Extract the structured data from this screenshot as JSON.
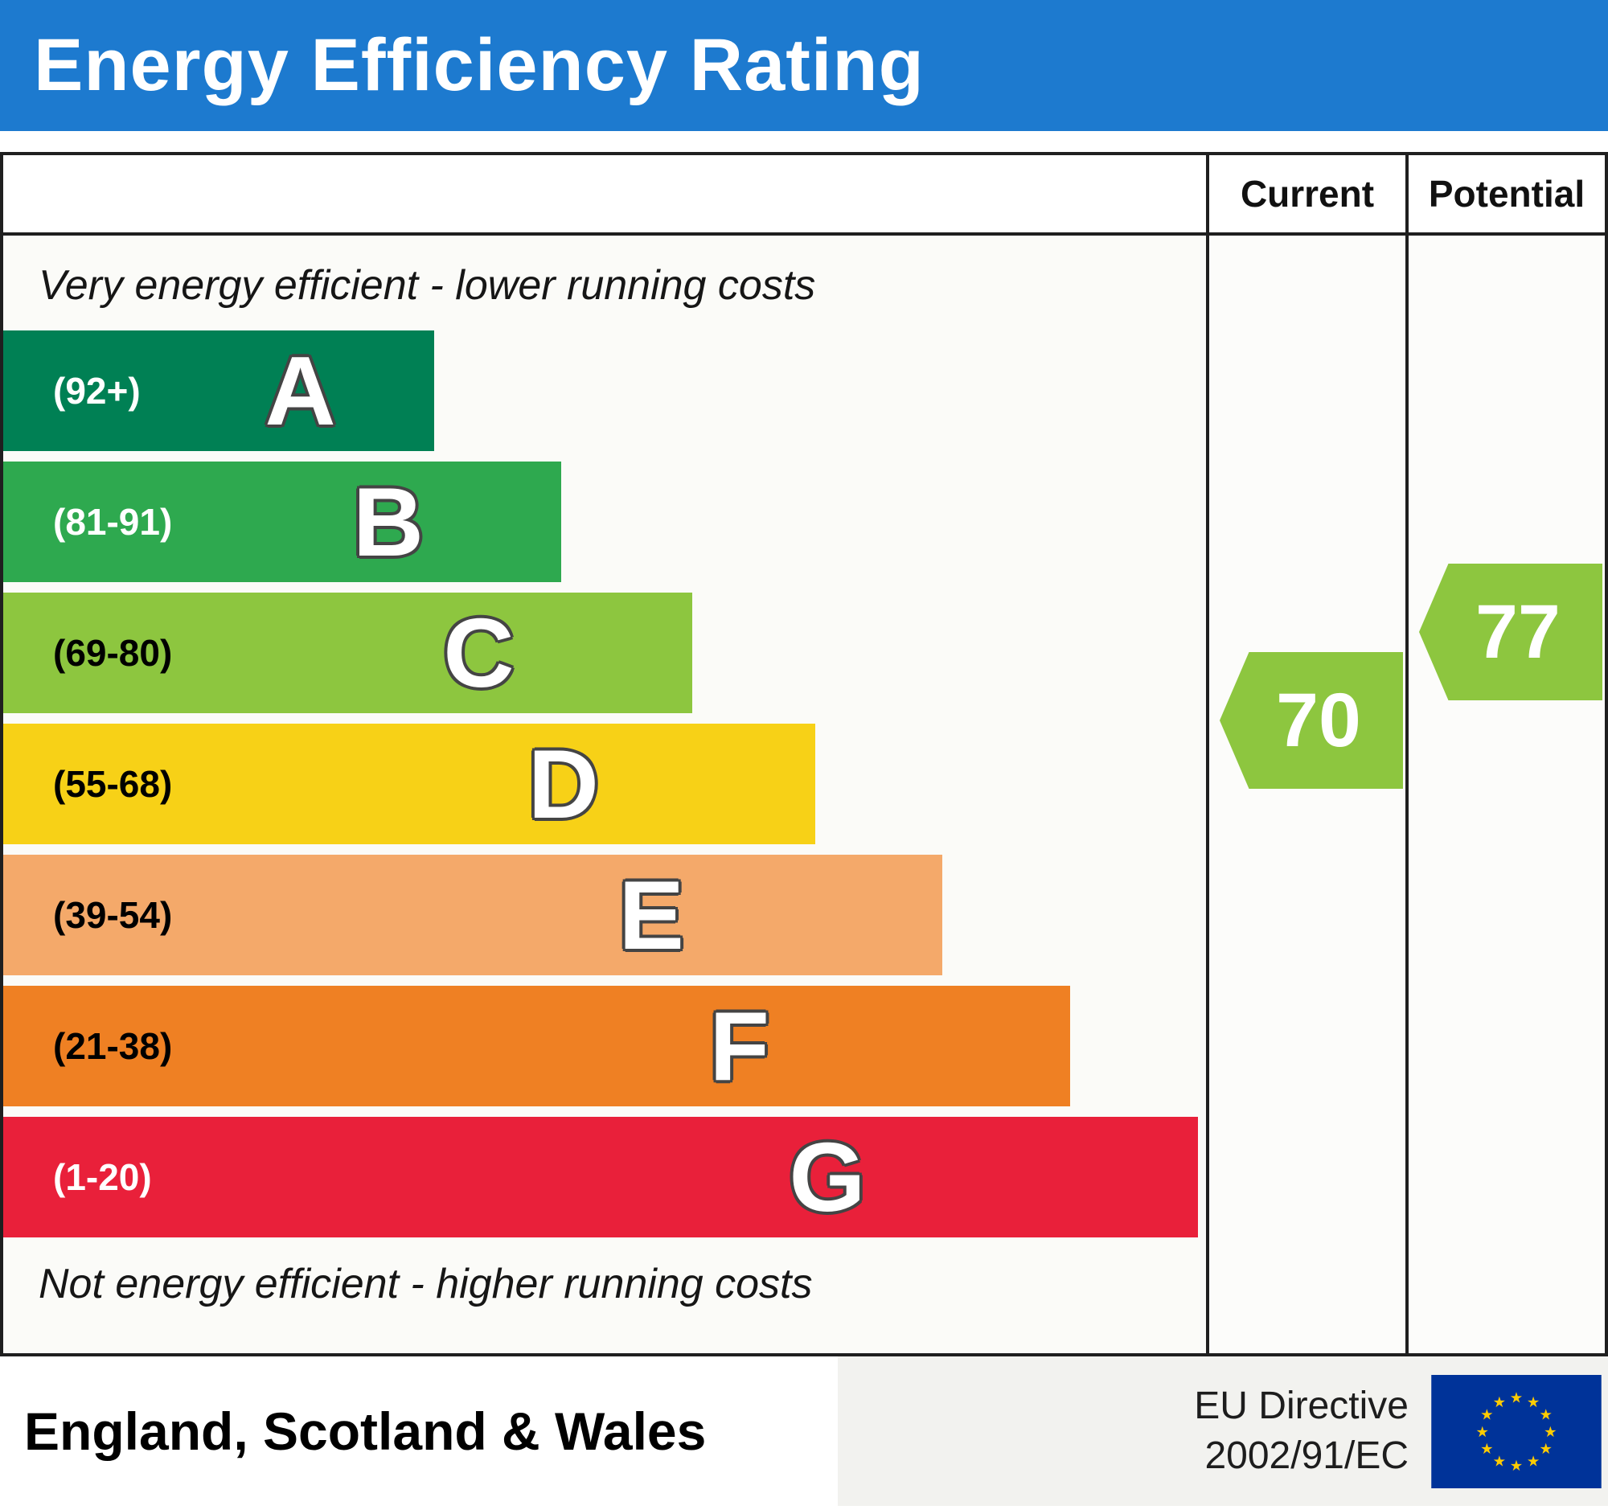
{
  "title": "Energy Efficiency Rating",
  "header": {
    "current": "Current",
    "potential": "Potential"
  },
  "notes": {
    "top": "Very energy efficient - lower running costs",
    "bottom": "Not energy efficient - higher running costs"
  },
  "bands": [
    {
      "letter": "A",
      "range": "(92+)",
      "color": "#008054",
      "text_color": "#ffffff",
      "width_pct": 35.8
    },
    {
      "letter": "B",
      "range": "(81-91)",
      "color": "#2ea94f",
      "text_color": "#ffffff",
      "width_pct": 46.4
    },
    {
      "letter": "C",
      "range": "(69-80)",
      "color": "#8dc63f",
      "text_color": "#000000",
      "width_pct": 57.3
    },
    {
      "letter": "D",
      "range": "(55-68)",
      "color": "#f7d117",
      "text_color": "#000000",
      "width_pct": 67.5
    },
    {
      "letter": "E",
      "range": "(39-54)",
      "color": "#f4a96a",
      "text_color": "#000000",
      "width_pct": 78.1
    },
    {
      "letter": "F",
      "range": "(21-38)",
      "color": "#ef8023",
      "text_color": "#000000",
      "width_pct": 88.7
    },
    {
      "letter": "G",
      "range": "(1-20)",
      "color": "#e9203a",
      "text_color": "#ffffff",
      "width_pct": 99.3
    }
  ],
  "current": {
    "value": "70",
    "color": "#8dc63f"
  },
  "potential": {
    "value": "77",
    "color": "#8dc63f"
  },
  "footer": {
    "region": "England, Scotland & Wales",
    "directive_line1": "EU Directive",
    "directive_line2": "2002/91/EC"
  },
  "colors": {
    "title_bg": "#1d7acf"
  },
  "flag": {
    "bg_color": "#003399",
    "star_color": "#ffcc00"
  },
  "chart_data": {
    "type": "bar",
    "title": "Energy Efficiency Rating",
    "categories": [
      "A (92+)",
      "B (81-91)",
      "C (69-80)",
      "D (55-68)",
      "E (39-54)",
      "F (21-38)",
      "G (1-20)"
    ],
    "values": [
      35.8,
      46.4,
      57.3,
      67.5,
      78.1,
      88.7,
      99.3
    ],
    "series": [
      {
        "name": "Current rating",
        "value": 70,
        "band": "C"
      },
      {
        "name": "Potential rating",
        "value": 77,
        "band": "C"
      }
    ],
    "xlabel": "",
    "ylabel": "",
    "legend": [
      "Current",
      "Potential"
    ],
    "annotations": [
      "Very energy efficient - lower running costs",
      "Not energy efficient - higher running costs",
      "England, Scotland & Wales",
      "EU Directive 2002/91/EC"
    ]
  }
}
